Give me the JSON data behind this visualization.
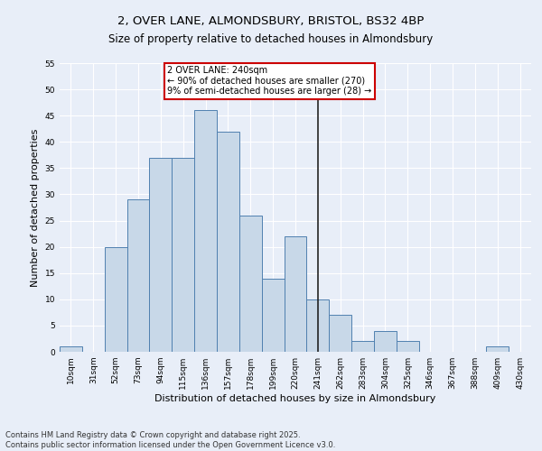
{
  "title_line1": "2, OVER LANE, ALMONDSBURY, BRISTOL, BS32 4BP",
  "title_line2": "Size of property relative to detached houses in Almondsbury",
  "xlabel": "Distribution of detached houses by size in Almondsbury",
  "ylabel": "Number of detached properties",
  "categories": [
    "10sqm",
    "31sqm",
    "52sqm",
    "73sqm",
    "94sqm",
    "115sqm",
    "136sqm",
    "157sqm",
    "178sqm",
    "199sqm",
    "220sqm",
    "241sqm",
    "262sqm",
    "283sqm",
    "304sqm",
    "325sqm",
    "346sqm",
    "367sqm",
    "388sqm",
    "409sqm",
    "430sqm"
  ],
  "values": [
    1,
    0,
    20,
    29,
    37,
    37,
    46,
    42,
    26,
    14,
    22,
    10,
    7,
    2,
    4,
    2,
    0,
    0,
    0,
    1,
    0
  ],
  "bar_color": "#c8d8e8",
  "bar_edge_color": "#5080b0",
  "background_color": "#e8eef8",
  "grid_color": "#ffffff",
  "vline_x_index": 11,
  "vline_color": "#222222",
  "annotation_text": "2 OVER LANE: 240sqm\n← 90% of detached houses are smaller (270)\n9% of semi-detached houses are larger (28) →",
  "annotation_box_color": "#ffffff",
  "annotation_box_edge_color": "#cc0000",
  "ylim": [
    0,
    55
  ],
  "yticks": [
    0,
    5,
    10,
    15,
    20,
    25,
    30,
    35,
    40,
    45,
    50,
    55
  ],
  "footer_line1": "Contains HM Land Registry data © Crown copyright and database right 2025.",
  "footer_line2": "Contains public sector information licensed under the Open Government Licence v3.0.",
  "title_fontsize": 9.5,
  "subtitle_fontsize": 8.5,
  "axis_label_fontsize": 8,
  "tick_fontsize": 6.5,
  "annotation_fontsize": 7,
  "footer_fontsize": 6
}
